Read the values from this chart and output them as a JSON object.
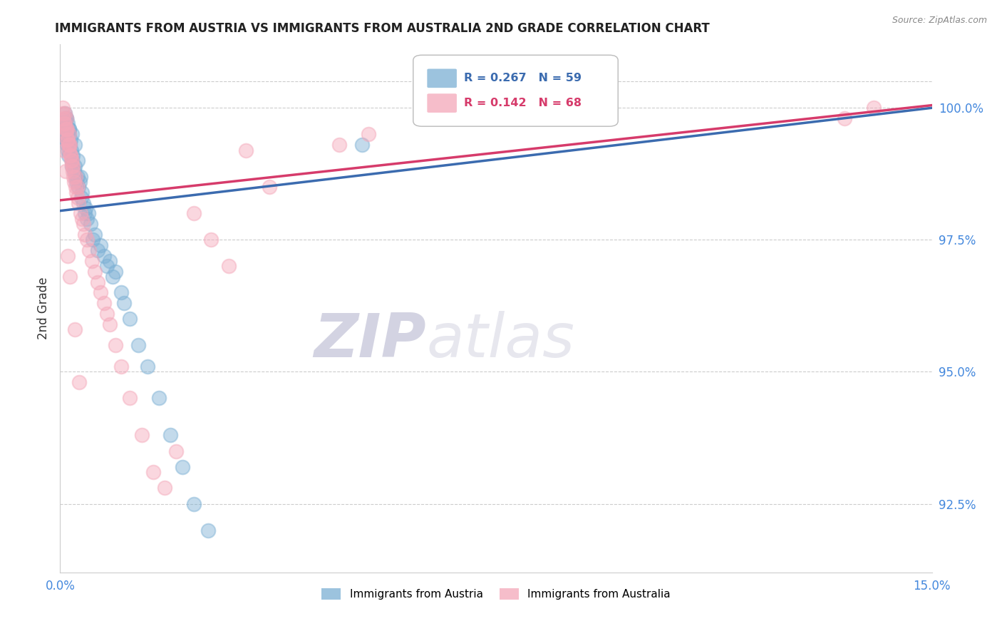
{
  "title": "IMMIGRANTS FROM AUSTRIA VS IMMIGRANTS FROM AUSTRALIA 2ND GRADE CORRELATION CHART",
  "source_text": "Source: ZipAtlas.com",
  "ylabel": "2nd Grade",
  "xlim": [
    0.0,
    15.0
  ],
  "ylim": [
    91.2,
    101.2
  ],
  "yticks": [
    92.5,
    95.0,
    97.5,
    100.0
  ],
  "yticklabels": [
    "92.5%",
    "95.0%",
    "97.5%",
    "100.0%"
  ],
  "xticks": [
    0.0,
    15.0
  ],
  "xticklabels": [
    "0.0%",
    "15.0%"
  ],
  "legend_austria": "Immigrants from Austria",
  "legend_australia": "Immigrants from Australia",
  "r_austria": 0.267,
  "n_austria": 59,
  "r_australia": 0.142,
  "n_australia": 68,
  "austria_color": "#7BAFD4",
  "australia_color": "#F4A7B9",
  "trendline_austria_color": "#3B6BAF",
  "trendline_australia_color": "#D63B6B",
  "watermark_zip": "ZIP",
  "watermark_atlas": "atlas",
  "austria_trend_y0": 98.05,
  "austria_trend_y1": 100.0,
  "australia_trend_y0": 98.25,
  "australia_trend_y1": 100.05,
  "austria_x": [
    0.05,
    0.07,
    0.09,
    0.1,
    0.11,
    0.12,
    0.13,
    0.14,
    0.15,
    0.16,
    0.17,
    0.18,
    0.19,
    0.2,
    0.21,
    0.22,
    0.24,
    0.25,
    0.26,
    0.28,
    0.3,
    0.32,
    0.34,
    0.36,
    0.38,
    0.4,
    0.42,
    0.44,
    0.46,
    0.48,
    0.52,
    0.56,
    0.6,
    0.65,
    0.7,
    0.75,
    0.8,
    0.85,
    0.9,
    0.95,
    1.05,
    1.1,
    1.2,
    1.35,
    1.5,
    1.7,
    1.9,
    2.1,
    2.3,
    2.55,
    0.08,
    0.1,
    0.13,
    0.16,
    0.2,
    0.25,
    0.3,
    0.35,
    5.2
  ],
  "austria_y": [
    99.6,
    99.5,
    99.7,
    99.8,
    99.4,
    99.3,
    99.2,
    99.1,
    99.6,
    99.5,
    99.3,
    99.4,
    99.2,
    99.0,
    98.9,
    99.1,
    98.8,
    98.9,
    98.7,
    98.6,
    98.7,
    98.5,
    98.6,
    98.3,
    98.4,
    98.2,
    98.0,
    98.1,
    97.9,
    98.0,
    97.8,
    97.5,
    97.6,
    97.3,
    97.4,
    97.2,
    97.0,
    97.1,
    96.8,
    96.9,
    96.5,
    96.3,
    96.0,
    95.5,
    95.1,
    94.5,
    93.8,
    93.2,
    92.5,
    92.0,
    99.9,
    99.8,
    99.7,
    99.6,
    99.5,
    99.3,
    99.0,
    98.7,
    99.3
  ],
  "australia_x": [
    0.04,
    0.05,
    0.06,
    0.07,
    0.08,
    0.09,
    0.1,
    0.11,
    0.12,
    0.13,
    0.14,
    0.15,
    0.16,
    0.17,
    0.18,
    0.19,
    0.2,
    0.21,
    0.22,
    0.23,
    0.24,
    0.26,
    0.28,
    0.3,
    0.32,
    0.35,
    0.38,
    0.4,
    0.43,
    0.46,
    0.5,
    0.55,
    0.6,
    0.65,
    0.7,
    0.75,
    0.8,
    0.85,
    0.95,
    1.05,
    1.2,
    1.4,
    1.6,
    1.8,
    2.0,
    2.3,
    2.6,
    2.9,
    3.2,
    3.6,
    0.08,
    0.1,
    0.12,
    0.15,
    0.18,
    0.22,
    0.26,
    0.3,
    4.8,
    5.3,
    13.5,
    14.0,
    0.07,
    0.09,
    0.13,
    0.17,
    0.25,
    0.33
  ],
  "australia_y": [
    99.9,
    100.0,
    99.8,
    99.7,
    99.9,
    99.6,
    99.8,
    99.5,
    99.6,
    99.4,
    99.3,
    99.5,
    99.2,
    99.3,
    99.1,
    99.0,
    98.9,
    99.0,
    98.8,
    98.7,
    98.6,
    98.5,
    98.4,
    98.3,
    98.2,
    98.0,
    97.9,
    97.8,
    97.6,
    97.5,
    97.3,
    97.1,
    96.9,
    96.7,
    96.5,
    96.3,
    96.1,
    95.9,
    95.5,
    95.1,
    94.5,
    93.8,
    93.1,
    92.8,
    93.5,
    98.0,
    97.5,
    97.0,
    99.2,
    98.5,
    99.7,
    99.6,
    99.4,
    99.3,
    99.1,
    98.9,
    98.7,
    98.5,
    99.3,
    99.5,
    99.8,
    100.0,
    99.2,
    98.8,
    97.2,
    96.8,
    95.8,
    94.8
  ]
}
